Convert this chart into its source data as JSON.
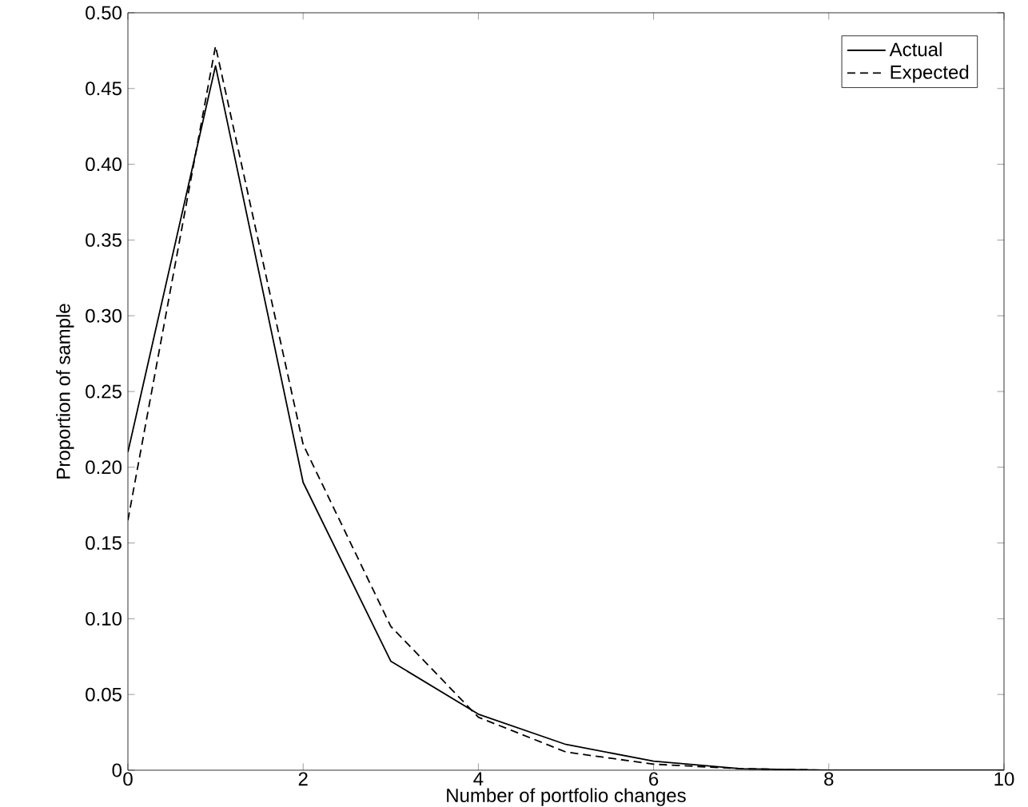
{
  "chart_data": {
    "type": "line",
    "xlabel": "Number of portfolio changes",
    "ylabel": "Proportion of sample",
    "x": [
      0,
      1,
      2,
      3,
      4,
      5,
      6,
      7,
      8,
      9,
      10
    ],
    "series": [
      {
        "name": "Actual",
        "color": "#000000",
        "line_style": "solid",
        "values": [
          0.21,
          0.465,
          0.19,
          0.072,
          0.037,
          0.017,
          0.006,
          0.001,
          0,
          0,
          0
        ]
      },
      {
        "name": "Expected",
        "color": "#000000",
        "line_style": "dashed",
        "values": [
          0.165,
          0.478,
          0.215,
          0.095,
          0.035,
          0.012,
          0.004,
          0.001,
          0,
          0,
          0
        ]
      }
    ],
    "xlim": [
      0,
      10
    ],
    "xticks": [
      0,
      2,
      4,
      6,
      8,
      10
    ],
    "ylim": [
      0,
      0.5
    ],
    "yticks": [
      {
        "value": 0,
        "label": "0"
      },
      {
        "value": 0.05,
        "label": "0.05"
      },
      {
        "value": 0.1,
        "label": "0.10"
      },
      {
        "value": 0.15,
        "label": "0.15"
      },
      {
        "value": 0.2,
        "label": "0.20"
      },
      {
        "value": 0.25,
        "label": "0.25"
      },
      {
        "value": 0.3,
        "label": "0.30"
      },
      {
        "value": 0.35,
        "label": "0.35"
      },
      {
        "value": 0.4,
        "label": "0.40"
      },
      {
        "value": 0.45,
        "label": "0.45"
      },
      {
        "value": 0.5,
        "label": "0.50"
      }
    ],
    "grid": false,
    "legend": "top right",
    "marker": "none"
  }
}
